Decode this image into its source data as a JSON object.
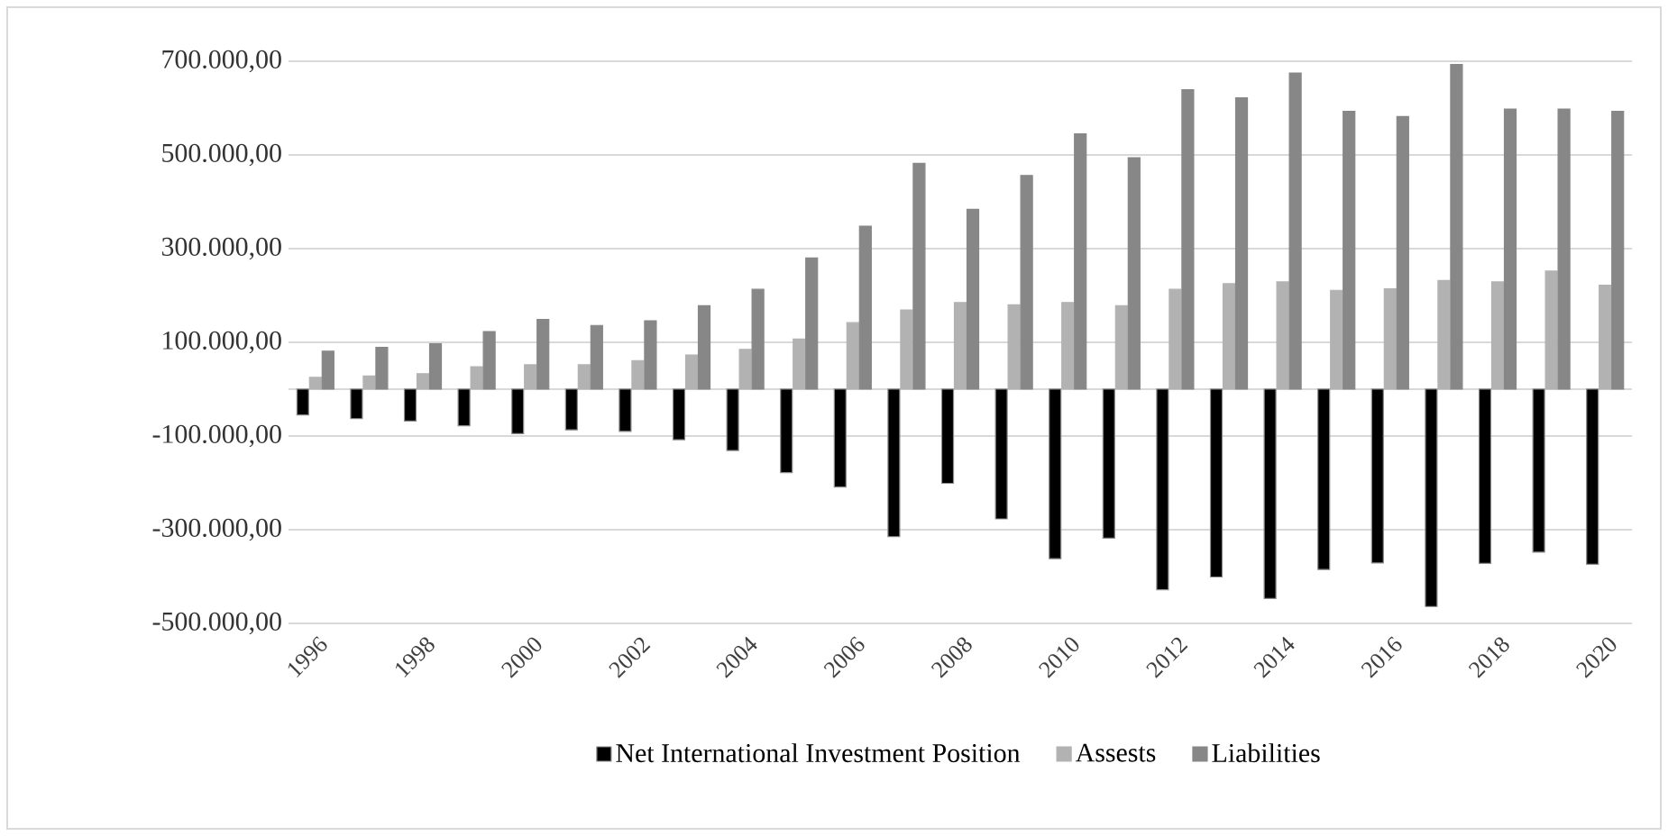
{
  "chart_data": {
    "type": "bar",
    "categories": [
      "1996",
      null,
      "1998",
      null,
      "2000",
      null,
      "2002",
      null,
      "2004",
      null,
      "2006",
      null,
      "2008",
      null,
      "2010",
      null,
      "2012",
      null,
      "2014",
      null,
      "2016",
      null,
      "2018",
      null,
      "2020"
    ],
    "series": [
      {
        "name": "Net International Investment Position",
        "color": "#000000",
        "values": [
          -55000,
          -63000,
          -68000,
          -78000,
          -95000,
          -87000,
          -90000,
          -108000,
          -131000,
          -178000,
          -209000,
          -315000,
          -201000,
          -277000,
          -362000,
          -318000,
          -428000,
          -401000,
          -447000,
          -385000,
          -371000,
          -464000,
          -372000,
          -348000,
          -374000
        ]
      },
      {
        "name": "Assests",
        "color": "#b2b2b2",
        "values": [
          25000,
          28000,
          33000,
          48000,
          52000,
          52000,
          61000,
          73000,
          85000,
          107000,
          142000,
          169000,
          185000,
          180000,
          185000,
          178000,
          213000,
          225000,
          229000,
          211000,
          214000,
          232000,
          229000,
          252000,
          222000
        ]
      },
      {
        "name": "Liabilities",
        "color": "#878787",
        "values": [
          81000,
          89000,
          97000,
          123000,
          149000,
          136000,
          146000,
          178000,
          213000,
          280000,
          348000,
          482000,
          384000,
          456000,
          545000,
          494000,
          639000,
          622000,
          675000,
          593000,
          582000,
          693000,
          598000,
          598000,
          593000
        ]
      }
    ],
    "ylim": [
      -500000,
      700000
    ],
    "yticks": [
      {
        "value": -500000,
        "label": "-500.000,00"
      },
      {
        "value": -300000,
        "label": "-300.000,00"
      },
      {
        "value": -100000,
        "label": "-100.000,00"
      },
      {
        "value": 100000,
        "label": "100.000,00"
      },
      {
        "value": 300000,
        "label": "300.000,00"
      },
      {
        "value": 500000,
        "label": "500.000,00"
      },
      {
        "value": 700000,
        "label": "700.000,00"
      }
    ],
    "grid": "y",
    "legend": "bottom"
  }
}
